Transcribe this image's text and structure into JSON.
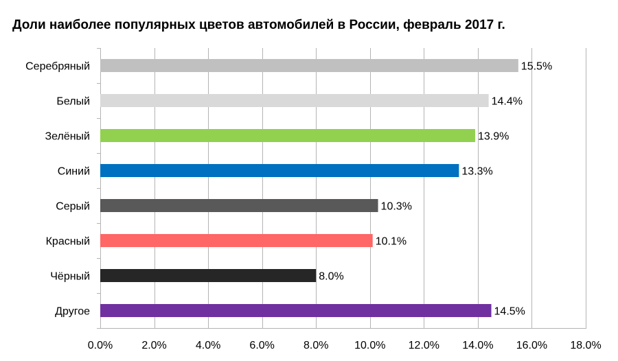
{
  "chart_data": {
    "type": "bar",
    "orientation": "horizontal",
    "title": "Доли наиболее популярных цветов автомобилей в России, февраль 2017 г.",
    "xlabel": "",
    "ylabel": "",
    "categories": [
      "Серебряный",
      "Белый",
      "Зелёный",
      "Синий",
      "Серый",
      "Красный",
      "Чёрный",
      "Другое"
    ],
    "values": [
      15.5,
      14.4,
      13.9,
      13.3,
      10.3,
      10.1,
      8.0,
      14.5
    ],
    "value_labels": [
      "15.5%",
      "14.4%",
      "13.9%",
      "13.3%",
      "10.3%",
      "10.1%",
      "8.0%",
      "14.5%"
    ],
    "colors": [
      "#c0c0c0",
      "#d9d9d9",
      "#92d050",
      "#0070c0",
      "#595959",
      "#ff6666",
      "#262626",
      "#7030a0"
    ],
    "xlim": [
      0,
      18
    ],
    "xticks": [
      0,
      2,
      4,
      6,
      8,
      10,
      12,
      14,
      16,
      18
    ],
    "xtick_labels": [
      "0.0%",
      "2.0%",
      "4.0%",
      "6.0%",
      "8.0%",
      "10.0%",
      "12.0%",
      "14.0%",
      "16.0%",
      "18.0%"
    ],
    "grid": true,
    "legend": "none"
  }
}
